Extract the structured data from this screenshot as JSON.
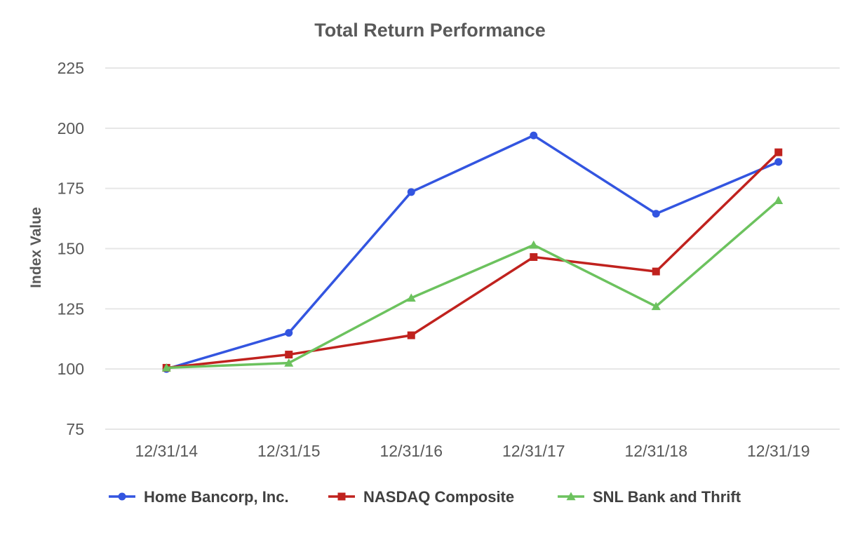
{
  "chart_data": {
    "type": "line",
    "title": "Total Return Performance",
    "xlabel": "",
    "ylabel": "Index Value",
    "categories": [
      "12/31/14",
      "12/31/15",
      "12/31/16",
      "12/31/17",
      "12/31/18",
      "12/31/19"
    ],
    "ylim": [
      75,
      225
    ],
    "yticks": [
      75,
      100,
      125,
      150,
      175,
      200,
      225
    ],
    "grid": true,
    "legend_position": "bottom",
    "series": [
      {
        "name": "Home Bancorp, Inc.",
        "color": "#3355e0",
        "marker": "circle",
        "values": [
          100,
          115,
          173.5,
          197,
          164.5,
          186
        ]
      },
      {
        "name": "NASDAQ Composite",
        "color": "#c0221e",
        "marker": "square",
        "values": [
          100.5,
          106,
          114,
          146.5,
          140.5,
          190
        ]
      },
      {
        "name": "SNL Bank and Thrift",
        "color": "#6cc25e",
        "marker": "triangle",
        "values": [
          100.5,
          102.5,
          129.5,
          151.5,
          126,
          170
        ]
      }
    ]
  }
}
